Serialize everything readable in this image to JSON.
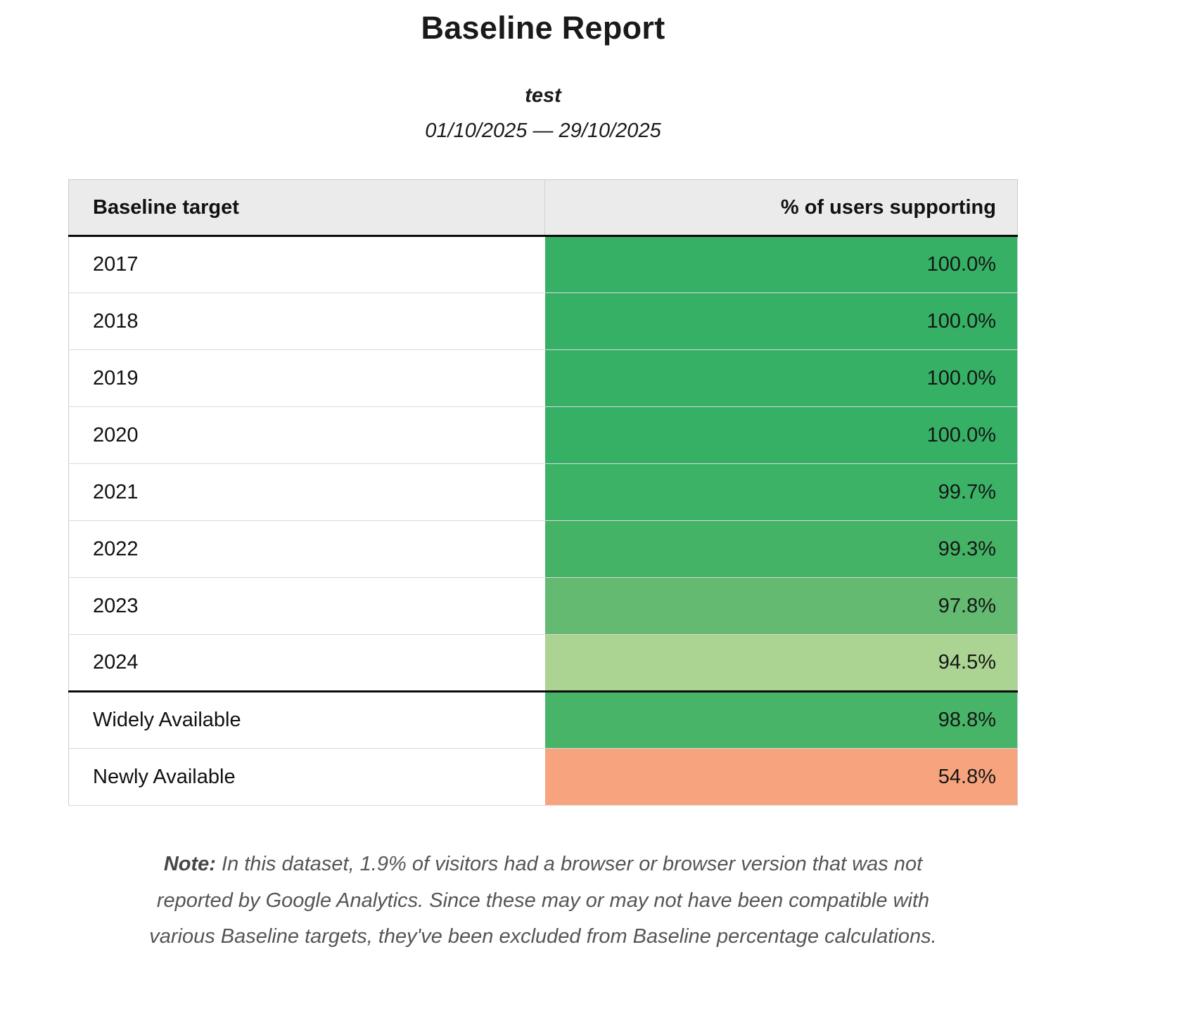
{
  "report": {
    "title": "Baseline Report",
    "subtitle": "test",
    "date_range": "01/10/2025 — 29/10/2025",
    "note_label": "Note:",
    "note_text": " In this dataset, 1.9% of visitors had a browser or browser version that was not reported by Google Analytics. Since these may or may not have been compatible with various Baseline targets, they've been excluded from Baseline percentage calculations."
  },
  "table": {
    "columns": [
      "Baseline target",
      "% of users supporting"
    ],
    "rows": [
      {
        "target": "2017",
        "value": "100.0%",
        "pct": 100.0,
        "color": "#35b065",
        "separator_above": false
      },
      {
        "target": "2018",
        "value": "100.0%",
        "pct": 100.0,
        "color": "#35b065",
        "separator_above": false
      },
      {
        "target": "2019",
        "value": "100.0%",
        "pct": 100.0,
        "color": "#35b065",
        "separator_above": false
      },
      {
        "target": "2020",
        "value": "100.0%",
        "pct": 100.0,
        "color": "#35b065",
        "separator_above": false
      },
      {
        "target": "2021",
        "value": "99.7%",
        "pct": 99.7,
        "color": "#3cb266",
        "separator_above": false
      },
      {
        "target": "2022",
        "value": "99.3%",
        "pct": 99.3,
        "color": "#45b366",
        "separator_above": false
      },
      {
        "target": "2023",
        "value": "97.8%",
        "pct": 97.8,
        "color": "#63ba70",
        "separator_above": false
      },
      {
        "target": "2024",
        "value": "94.5%",
        "pct": 94.5,
        "color": "#abd492",
        "separator_above": false
      },
      {
        "target": "Widely Available",
        "value": "98.8%",
        "pct": 98.8,
        "color": "#48b467",
        "separator_above": true
      },
      {
        "target": "Newly Available",
        "value": "54.8%",
        "pct": 54.8,
        "color": "#f7a47e",
        "separator_above": false
      }
    ]
  },
  "colors": {
    "header_bg": "#ebebeb",
    "thick_rule": "#0a0a0a",
    "row_divider": "#d9d9d9",
    "green_full": "#35b065",
    "green_light": "#abd492",
    "salmon_low": "#f7a47e",
    "note_text": "#555555"
  },
  "chart_data": {
    "type": "table",
    "title": "Baseline Report",
    "subtitle": "test",
    "date_range": "01/10/2025 — 29/10/2025",
    "columns": [
      "Baseline target",
      "% of users supporting"
    ],
    "rows": [
      [
        "2017",
        100.0
      ],
      [
        "2018",
        100.0
      ],
      [
        "2019",
        100.0
      ],
      [
        "2020",
        100.0
      ],
      [
        "2021",
        99.7
      ],
      [
        "2022",
        99.3
      ],
      [
        "2023",
        97.8
      ],
      [
        "2024",
        94.5
      ],
      [
        "Widely Available",
        98.8
      ],
      [
        "Newly Available",
        54.8
      ]
    ],
    "note": "In this dataset, 1.9% of visitors had a browser or browser version that was not reported by Google Analytics. Since these may or may not have been compatible with various Baseline targets, they've been excluded from Baseline percentage calculations.",
    "layout_hints": {
      "value_cells_colored_by_percentage": true,
      "thick_rule_below_header": true,
      "thick_rule_above_row": "Widely Available"
    }
  }
}
